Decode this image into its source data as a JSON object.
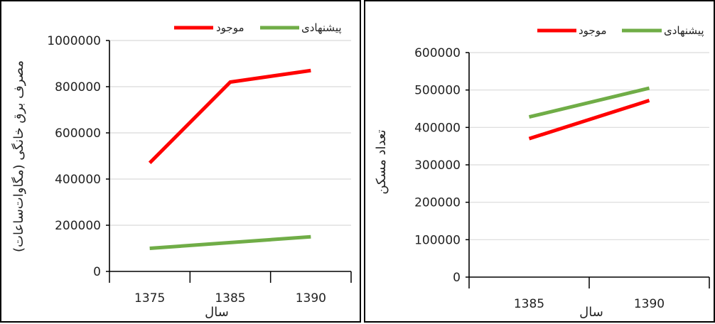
{
  "chart_data": [
    {
      "type": "line",
      "categories": [
        "1375",
        "1385",
        "1390"
      ],
      "series": [
        {
          "name": "موجود",
          "values": [
            470000,
            820000,
            870000
          ],
          "color": "#ff0000"
        },
        {
          "name": "پیشنهادی",
          "values": [
            100000,
            125000,
            150000
          ],
          "color": "#70ad47"
        }
      ],
      "xlabel": "سال",
      "ylabel": "مصرف برق خانگی (مگاوات‌ساعات)",
      "ylim": [
        0,
        1000000
      ],
      "yticks": [
        0,
        200000,
        400000,
        600000,
        800000,
        1000000
      ],
      "grid": true,
      "legend_position": "top"
    },
    {
      "type": "line",
      "categories": [
        "1385",
        "1390"
      ],
      "series": [
        {
          "name": "موجود",
          "values": [
            370000,
            472000
          ],
          "color": "#ff0000"
        },
        {
          "name": "پیشنهادی",
          "values": [
            428000,
            505000
          ],
          "color": "#70ad47"
        }
      ],
      "xlabel": "سال",
      "ylabel": "تعداد مسکن",
      "ylim": [
        0,
        600000
      ],
      "yticks": [
        0,
        100000,
        200000,
        300000,
        400000,
        500000,
        600000
      ],
      "grid": true,
      "legend_position": "top"
    }
  ]
}
